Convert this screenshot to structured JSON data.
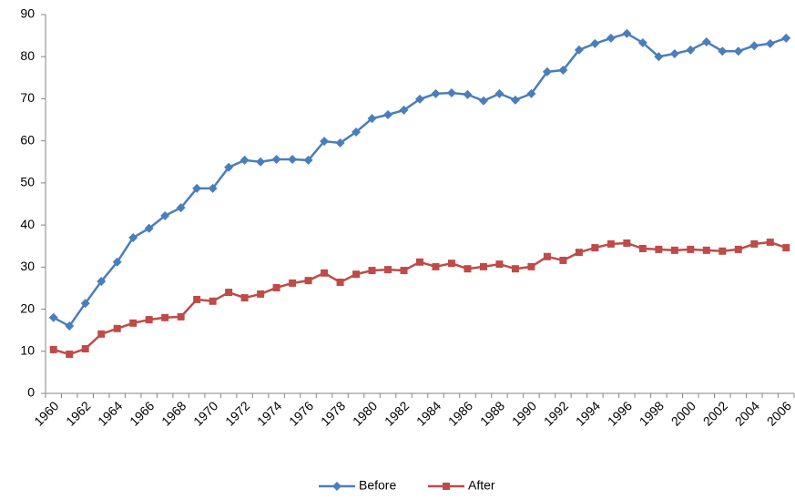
{
  "chart_data": {
    "type": "line",
    "categories": [
      "1960",
      null,
      "1962",
      null,
      "1964",
      null,
      "1966",
      null,
      "1968",
      null,
      "1970",
      null,
      "1972",
      null,
      "1974",
      null,
      "1976",
      null,
      "1978",
      null,
      "1980",
      null,
      "1982",
      null,
      "1984",
      null,
      "1986",
      null,
      "1988",
      null,
      "1990",
      null,
      "1992",
      null,
      "1994",
      null,
      "1996",
      null,
      "1998",
      null,
      "2000",
      null,
      "2002",
      null,
      "2004",
      null,
      "2006"
    ],
    "series": [
      {
        "name": "Before",
        "color": "#4a7ebb",
        "marker": "diamond",
        "values": [
          18.0,
          16.0,
          21.4,
          26.6,
          31.2,
          37.0,
          39.2,
          42.2,
          44.1,
          48.7,
          48.7,
          53.7,
          55.4,
          55.0,
          55.6,
          55.6,
          55.4,
          59.9,
          59.5,
          62.1,
          65.3,
          66.2,
          67.3,
          69.9,
          71.2,
          71.4,
          71.0,
          69.5,
          71.2,
          69.7,
          71.2,
          76.4,
          76.8,
          81.6,
          83.1,
          84.4,
          85.5,
          83.3,
          80.0,
          80.7,
          81.6,
          83.5,
          81.3,
          81.3,
          82.6,
          83.1,
          84.4
        ]
      },
      {
        "name": "After",
        "color": "#be4b48",
        "marker": "square",
        "values": [
          10.4,
          9.3,
          10.6,
          14.1,
          15.4,
          16.7,
          17.5,
          18.0,
          18.2,
          22.3,
          21.9,
          24.0,
          22.7,
          23.6,
          25.1,
          26.2,
          26.8,
          28.6,
          26.4,
          28.3,
          29.2,
          29.4,
          29.2,
          31.2,
          30.1,
          30.9,
          29.6,
          30.1,
          30.7,
          29.6,
          30.1,
          32.5,
          31.6,
          33.5,
          34.6,
          35.5,
          35.7,
          34.4,
          34.2,
          34.0,
          34.2,
          34.0,
          33.8,
          34.2,
          35.5,
          35.9,
          34.6
        ]
      }
    ],
    "ylim": [
      0,
      90
    ],
    "yticks": [
      0,
      10,
      20,
      30,
      40,
      50,
      60,
      70,
      80,
      90
    ],
    "grid": false,
    "legend": "bottom"
  }
}
